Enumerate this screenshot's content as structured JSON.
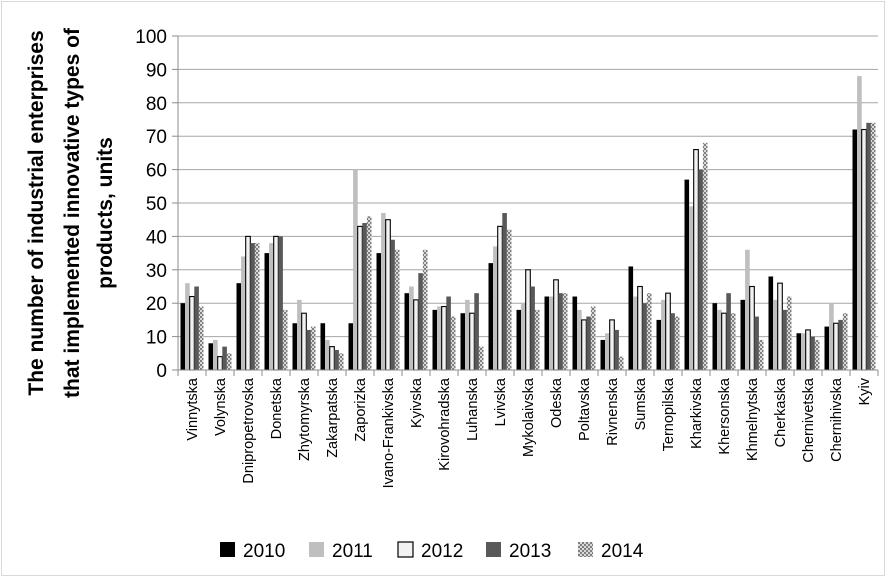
{
  "chart_data": {
    "type": "bar",
    "title": "",
    "ylabel_lines": [
      "The number of industrial enterprises",
      "that implemented innovative types of",
      "products, units"
    ],
    "xlabel": "",
    "ylim": [
      0,
      100
    ],
    "yticks": [
      0,
      10,
      20,
      30,
      40,
      50,
      60,
      70,
      80,
      90,
      100
    ],
    "grid": "horizontal",
    "legend_position": "bottom",
    "categories": [
      "Vinnytska",
      "Volynska",
      "Dnipropetrovska",
      "Donetska",
      "Zhytomyrska",
      "Zakarpatska",
      "Zaporizka",
      "Ivano-Frankivska",
      "Kyivska",
      "Kirovohradska",
      "Luhanska",
      "Lvivska",
      "Mykolaivska",
      "Odeska",
      "Poltavska",
      "Rivnenska",
      "Sumska",
      "Ternopilska",
      "Kharkivska",
      "Khersonska",
      "Khmelnytska",
      "Cherkaska",
      "Chernivetska",
      "Chernihivska",
      "Kyiv"
    ],
    "series": [
      {
        "name": "2010",
        "color": "#000000",
        "pattern": "solid",
        "values": [
          20,
          8,
          26,
          35,
          14,
          14,
          14,
          35,
          23,
          18,
          17,
          32,
          18,
          22,
          22,
          9,
          31,
          15,
          57,
          20,
          21,
          28,
          11,
          13,
          72
        ]
      },
      {
        "name": "2011",
        "color": "#bfbfbf",
        "pattern": "solid",
        "values": [
          26,
          9,
          34,
          38,
          21,
          9,
          60,
          47,
          25,
          19,
          21,
          37,
          20,
          22,
          18,
          11,
          22,
          21,
          49,
          18,
          36,
          21,
          11,
          20,
          88
        ]
      },
      {
        "name": "2012",
        "color": "#f2f2f2",
        "pattern": "outlined",
        "values": [
          22,
          4,
          40,
          40,
          17,
          7,
          43,
          45,
          21,
          19,
          17,
          43,
          30,
          27,
          15,
          15,
          25,
          23,
          66,
          17,
          25,
          26,
          12,
          14,
          72
        ]
      },
      {
        "name": "2013",
        "color": "#595959",
        "pattern": "solid",
        "values": [
          25,
          7,
          38,
          40,
          12,
          6,
          44,
          39,
          29,
          22,
          23,
          47,
          25,
          23,
          16,
          12,
          20,
          17,
          60,
          23,
          16,
          18,
          10,
          15,
          74
        ]
      },
      {
        "name": "2014",
        "color": "#9e9e9e",
        "pattern": "checker",
        "values": [
          19,
          5,
          38,
          18,
          13,
          5,
          46,
          36,
          36,
          16,
          7,
          42,
          18,
          23,
          19,
          4,
          23,
          16,
          68,
          17,
          9,
          22,
          9,
          17,
          74
        ]
      }
    ]
  }
}
